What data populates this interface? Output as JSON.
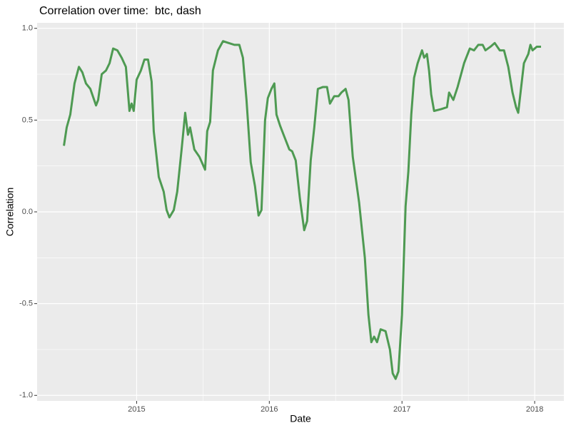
{
  "chart_data": {
    "type": "line",
    "title": "Correlation over time:  btc, dash",
    "x_label": "Date",
    "y_label": "Correlation",
    "x": [
      2014.452,
      2014.473,
      2014.5,
      2014.532,
      2014.565,
      2014.591,
      2014.618,
      2014.651,
      2014.694,
      2014.71,
      2014.737,
      2014.769,
      2014.796,
      2014.823,
      2014.855,
      2014.887,
      2014.919,
      2014.946,
      2014.962,
      2014.978,
      2015.0,
      2015.032,
      2015.059,
      2015.086,
      2015.113,
      2015.129,
      2015.167,
      2015.204,
      2015.226,
      2015.247,
      2015.28,
      2015.306,
      2015.339,
      2015.366,
      2015.387,
      2015.403,
      2015.419,
      2015.435,
      2015.473,
      2015.516,
      2015.532,
      2015.554,
      2015.575,
      2015.613,
      2015.651,
      2015.694,
      2015.737,
      2015.774,
      2015.801,
      2015.828,
      2015.86,
      2015.892,
      2015.919,
      2015.941,
      2015.968,
      2015.989,
      2016.016,
      2016.038,
      2016.054,
      2016.081,
      2016.113,
      2016.151,
      2016.172,
      2016.199,
      2016.231,
      2016.263,
      2016.285,
      2016.312,
      2016.339,
      2016.366,
      2016.403,
      2016.435,
      2016.457,
      2016.489,
      2016.521,
      2016.543,
      2016.575,
      2016.597,
      2016.629,
      2016.677,
      2016.72,
      2016.747,
      2016.769,
      2016.79,
      2016.812,
      2016.839,
      2016.876,
      2016.909,
      2016.93,
      2016.952,
      2016.973,
      2017.0,
      2017.027,
      2017.048,
      2017.07,
      2017.091,
      2017.118,
      2017.151,
      2017.167,
      2017.188,
      2017.204,
      2017.22,
      2017.242,
      2017.296,
      2017.339,
      2017.355,
      2017.387,
      2017.419,
      2017.468,
      2017.511,
      2017.543,
      2017.575,
      2017.608,
      2017.629,
      2017.667,
      2017.699,
      2017.737,
      2017.769,
      2017.801,
      2017.833,
      2017.86,
      2017.876,
      2017.919,
      2017.952,
      2017.968,
      2017.984,
      2018.016,
      2018.048
    ],
    "series": [
      {
        "name": "btc, dash",
        "color": "#4e9a52",
        "values": [
          0.36,
          0.46,
          0.53,
          0.7,
          0.79,
          0.76,
          0.7,
          0.67,
          0.58,
          0.61,
          0.75,
          0.77,
          0.81,
          0.89,
          0.88,
          0.84,
          0.79,
          0.55,
          0.59,
          0.55,
          0.72,
          0.77,
          0.83,
          0.83,
          0.71,
          0.44,
          0.19,
          0.11,
          0.01,
          -0.03,
          0.01,
          0.11,
          0.34,
          0.54,
          0.42,
          0.46,
          0.4,
          0.34,
          0.3,
          0.23,
          0.44,
          0.49,
          0.77,
          0.88,
          0.93,
          0.92,
          0.91,
          0.91,
          0.84,
          0.61,
          0.27,
          0.14,
          -0.02,
          0.01,
          0.5,
          0.62,
          0.67,
          0.7,
          0.53,
          0.47,
          0.41,
          0.34,
          0.33,
          0.28,
          0.07,
          -0.1,
          -0.05,
          0.28,
          0.46,
          0.67,
          0.68,
          0.68,
          0.59,
          0.63,
          0.63,
          0.65,
          0.67,
          0.61,
          0.3,
          0.05,
          -0.25,
          -0.56,
          -0.71,
          -0.68,
          -0.71,
          -0.64,
          -0.65,
          -0.75,
          -0.88,
          -0.91,
          -0.87,
          -0.56,
          0.03,
          0.22,
          0.53,
          0.73,
          0.81,
          0.88,
          0.84,
          0.86,
          0.77,
          0.64,
          0.55,
          0.56,
          0.57,
          0.65,
          0.61,
          0.68,
          0.81,
          0.89,
          0.88,
          0.91,
          0.91,
          0.88,
          0.9,
          0.92,
          0.88,
          0.88,
          0.79,
          0.65,
          0.57,
          0.54,
          0.81,
          0.86,
          0.91,
          0.88,
          0.9,
          0.9
        ]
      }
    ],
    "xlim": [
      2014.25,
      2018.22
    ],
    "xticks": [
      2015,
      2016,
      2017,
      2018
    ],
    "ylim": [
      -1.03,
      1.03
    ],
    "yticks": [
      {
        "value": -1,
        "label": "-1.0"
      },
      -0.5,
      {
        "value": 0,
        "label": "0.0"
      },
      0.5,
      {
        "value": 1,
        "label": "1.0"
      }
    ],
    "grid": true
  }
}
